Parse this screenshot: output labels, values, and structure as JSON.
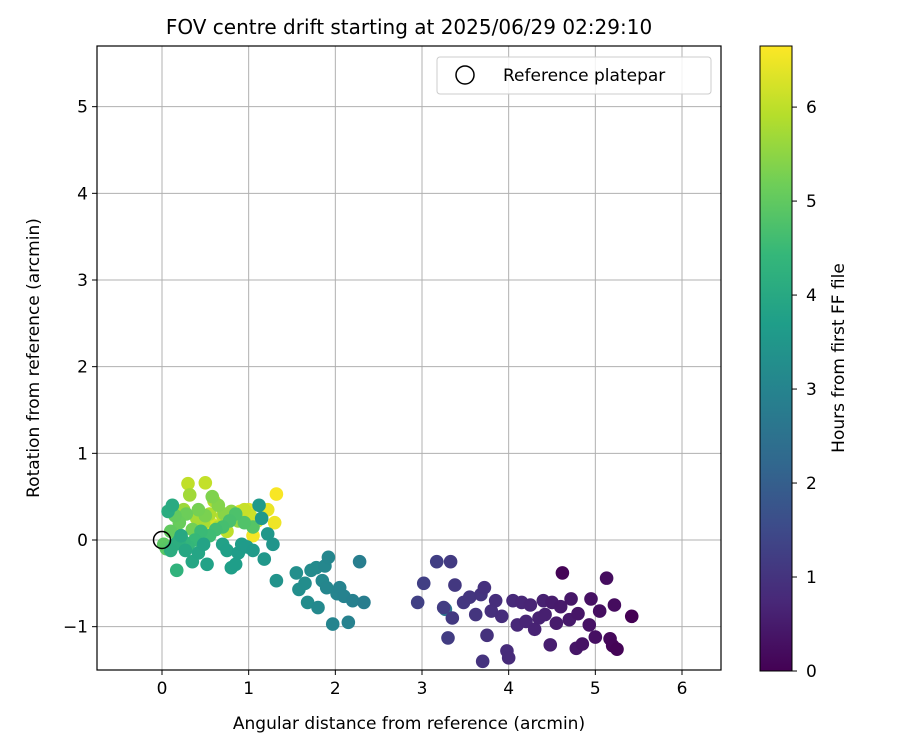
{
  "chart_data": {
    "type": "scatter",
    "title": "FOV centre drift starting at 2025/06/29 02:29:10",
    "xlabel": "Angular distance from reference (arcmin)",
    "ylabel": "Rotation from reference (arcmin)",
    "xlim": [
      -0.75,
      6.45
    ],
    "ylim": [
      -1.5,
      5.7
    ],
    "xticks": [
      0,
      1,
      2,
      3,
      4,
      5,
      6
    ],
    "yticks": [
      -1,
      0,
      1,
      2,
      3,
      4,
      5
    ],
    "grid": true,
    "legend": {
      "position": "top-right",
      "entries": [
        {
          "label": "Reference platepar",
          "marker": "open-circle"
        }
      ]
    },
    "reference_point": {
      "x": 0,
      "y": 0
    },
    "colorbar": {
      "label": "Hours from first FF file",
      "range": [
        0,
        6.65
      ],
      "ticks": [
        0,
        1,
        2,
        3,
        4,
        5,
        6
      ],
      "colormap": "viridis",
      "colors": [
        "#440154",
        "#482878",
        "#3e4989",
        "#31688e",
        "#26828e",
        "#1f9e89",
        "#35b779",
        "#6ece58",
        "#b5de2b",
        "#fde725"
      ]
    },
    "series": [
      {
        "points": [
          [
            5.42,
            -0.88,
            0.0
          ],
          [
            5.25,
            -1.26,
            0.05
          ],
          [
            5.2,
            -1.22,
            0.1
          ],
          [
            5.17,
            -1.14,
            0.15
          ],
          [
            5.22,
            -0.75,
            0.2
          ],
          [
            5.13,
            -0.44,
            0.22
          ],
          [
            5.05,
            -0.82,
            0.25
          ],
          [
            5.0,
            -1.12,
            0.28
          ],
          [
            4.95,
            -0.68,
            0.3
          ],
          [
            4.93,
            -0.98,
            0.33
          ],
          [
            4.85,
            -1.2,
            0.35
          ],
          [
            4.8,
            -0.85,
            0.38
          ],
          [
            4.78,
            -1.25,
            0.4
          ],
          [
            4.72,
            -0.68,
            0.42
          ],
          [
            4.7,
            -0.92,
            0.45
          ],
          [
            4.62,
            -0.38,
            0.05
          ],
          [
            4.6,
            -0.77,
            0.48
          ],
          [
            4.55,
            -0.96,
            0.5
          ],
          [
            4.5,
            -0.72,
            0.52
          ],
          [
            4.48,
            -1.21,
            0.55
          ],
          [
            4.42,
            -0.86,
            0.58
          ],
          [
            4.4,
            -0.7,
            0.6
          ],
          [
            4.35,
            -0.9,
            0.62
          ],
          [
            4.3,
            -1.03,
            0.65
          ],
          [
            4.25,
            -0.75,
            0.68
          ],
          [
            4.2,
            -0.94,
            0.7
          ],
          [
            4.15,
            -0.72,
            0.72
          ],
          [
            4.1,
            -0.98,
            0.75
          ],
          [
            4.05,
            -0.7,
            0.78
          ],
          [
            4.0,
            -1.36,
            0.8
          ],
          [
            3.98,
            -1.28,
            0.82
          ],
          [
            3.92,
            -0.88,
            0.85
          ],
          [
            3.85,
            -0.7,
            0.88
          ],
          [
            3.8,
            -0.82,
            0.9
          ],
          [
            3.75,
            -1.1,
            0.93
          ],
          [
            3.72,
            -0.55,
            0.95
          ],
          [
            3.7,
            -1.4,
            0.98
          ],
          [
            3.68,
            -0.63,
            1.0
          ],
          [
            3.62,
            -0.86,
            1.02
          ],
          [
            3.55,
            -0.66,
            1.05
          ],
          [
            3.48,
            -0.72,
            1.08
          ],
          [
            3.38,
            -0.52,
            1.1
          ],
          [
            3.35,
            -0.9,
            1.12
          ],
          [
            3.33,
            -0.25,
            1.15
          ],
          [
            3.3,
            -1.13,
            1.18
          ],
          [
            3.25,
            -0.78,
            1.2
          ],
          [
            3.17,
            -0.25,
            1.23
          ],
          [
            3.02,
            -0.5,
            1.25
          ],
          [
            2.95,
            -0.72,
            1.28
          ],
          [
            3.27,
            -0.8,
            2.7
          ],
          [
            2.33,
            -0.72,
            2.8
          ],
          [
            2.28,
            -0.25,
            2.85
          ],
          [
            2.2,
            -0.7,
            2.9
          ],
          [
            2.15,
            -0.95,
            2.92
          ],
          [
            2.1,
            -0.65,
            2.95
          ],
          [
            2.05,
            -0.55,
            2.97
          ],
          [
            2.02,
            -0.62,
            3.0
          ],
          [
            1.97,
            -0.97,
            3.02
          ],
          [
            1.92,
            -0.2,
            3.05
          ],
          [
            1.9,
            -0.55,
            3.07
          ],
          [
            1.88,
            -0.3,
            3.1
          ],
          [
            1.85,
            -0.47,
            3.12
          ],
          [
            1.8,
            -0.78,
            3.15
          ],
          [
            1.78,
            -0.32,
            3.18
          ],
          [
            1.72,
            -0.35,
            3.2
          ],
          [
            1.68,
            -0.72,
            3.22
          ],
          [
            1.65,
            -0.5,
            3.25
          ],
          [
            1.58,
            -0.57,
            3.28
          ],
          [
            1.55,
            -0.38,
            3.3
          ],
          [
            1.32,
            -0.47,
            3.4
          ],
          [
            1.28,
            -0.05,
            3.45
          ],
          [
            1.22,
            0.07,
            3.5
          ],
          [
            1.18,
            -0.22,
            3.52
          ],
          [
            1.15,
            0.25,
            3.55
          ],
          [
            1.12,
            0.4,
            3.58
          ],
          [
            1.05,
            -0.12,
            3.6
          ],
          [
            0.98,
            -0.08,
            3.62
          ],
          [
            0.92,
            -0.05,
            3.65
          ],
          [
            0.88,
            -0.15,
            3.68
          ],
          [
            0.85,
            -0.28,
            3.7
          ],
          [
            0.8,
            -0.32,
            3.72
          ],
          [
            0.75,
            -0.12,
            3.75
          ],
          [
            0.7,
            -0.05,
            3.78
          ],
          [
            0.52,
            -0.28,
            3.8
          ],
          [
            0.48,
            -0.05,
            3.85
          ],
          [
            0.42,
            -0.15,
            3.9
          ],
          [
            0.35,
            -0.25,
            3.92
          ],
          [
            0.27,
            -0.12,
            3.95
          ],
          [
            0.22,
            0.05,
            4.0
          ],
          [
            0.12,
            0.4,
            4.05
          ],
          [
            0.07,
            0.33,
            4.1
          ],
          [
            0.1,
            -0.12,
            4.12
          ],
          [
            0.15,
            -0.05,
            4.15
          ],
          [
            0.2,
            0.0,
            4.2
          ],
          [
            0.17,
            -0.35,
            4.3
          ],
          [
            0.25,
            -0.02,
            4.35
          ],
          [
            0.3,
            -0.08,
            4.4
          ],
          [
            0.38,
            0.0,
            4.45
          ],
          [
            0.45,
            0.1,
            4.5
          ],
          [
            0.55,
            0.05,
            4.55
          ],
          [
            0.62,
            0.12,
            4.6
          ],
          [
            0.7,
            0.15,
            4.65
          ],
          [
            0.78,
            0.22,
            4.7
          ],
          [
            0.85,
            0.3,
            4.75
          ],
          [
            0.95,
            0.2,
            4.8
          ],
          [
            1.05,
            0.15,
            4.85
          ],
          [
            0.05,
            -0.1,
            4.9
          ],
          [
            0.02,
            -0.05,
            4.95
          ],
          [
            0.1,
            0.1,
            5.0
          ],
          [
            0.15,
            0.28,
            5.05
          ],
          [
            0.2,
            0.2,
            5.1
          ],
          [
            0.28,
            0.3,
            5.15
          ],
          [
            0.35,
            0.12,
            5.2
          ],
          [
            0.42,
            0.35,
            5.25
          ],
          [
            0.5,
            0.28,
            5.3
          ],
          [
            0.58,
            0.5,
            5.35
          ],
          [
            0.65,
            0.4,
            5.4
          ],
          [
            0.72,
            0.3,
            5.45
          ],
          [
            0.8,
            0.33,
            5.5
          ],
          [
            0.88,
            0.22,
            5.55
          ],
          [
            0.18,
            0.05,
            5.6
          ],
          [
            0.25,
            0.35,
            5.65
          ],
          [
            0.32,
            0.52,
            5.7
          ],
          [
            0.4,
            0.25,
            5.75
          ],
          [
            0.48,
            0.2,
            5.8
          ],
          [
            0.55,
            0.3,
            5.85
          ],
          [
            0.6,
            0.45,
            5.88
          ],
          [
            0.65,
            0.15,
            5.9
          ],
          [
            0.7,
            0.28,
            5.95
          ],
          [
            0.75,
            0.1,
            6.0
          ],
          [
            0.3,
            0.65,
            6.02
          ],
          [
            0.5,
            0.66,
            6.05
          ],
          [
            0.95,
            0.35,
            6.1
          ],
          [
            1.02,
            0.28,
            6.15
          ],
          [
            1.1,
            0.22,
            6.2
          ],
          [
            0.58,
            0.18,
            6.25
          ],
          [
            0.52,
            0.1,
            6.3
          ],
          [
            1.0,
            0.35,
            6.35
          ],
          [
            1.22,
            0.35,
            6.45
          ],
          [
            1.3,
            0.2,
            6.5
          ],
          [
            1.32,
            0.53,
            6.6
          ],
          [
            1.05,
            0.05,
            6.55
          ],
          [
            0.9,
            0.33,
            6.4
          ]
        ]
      }
    ]
  }
}
